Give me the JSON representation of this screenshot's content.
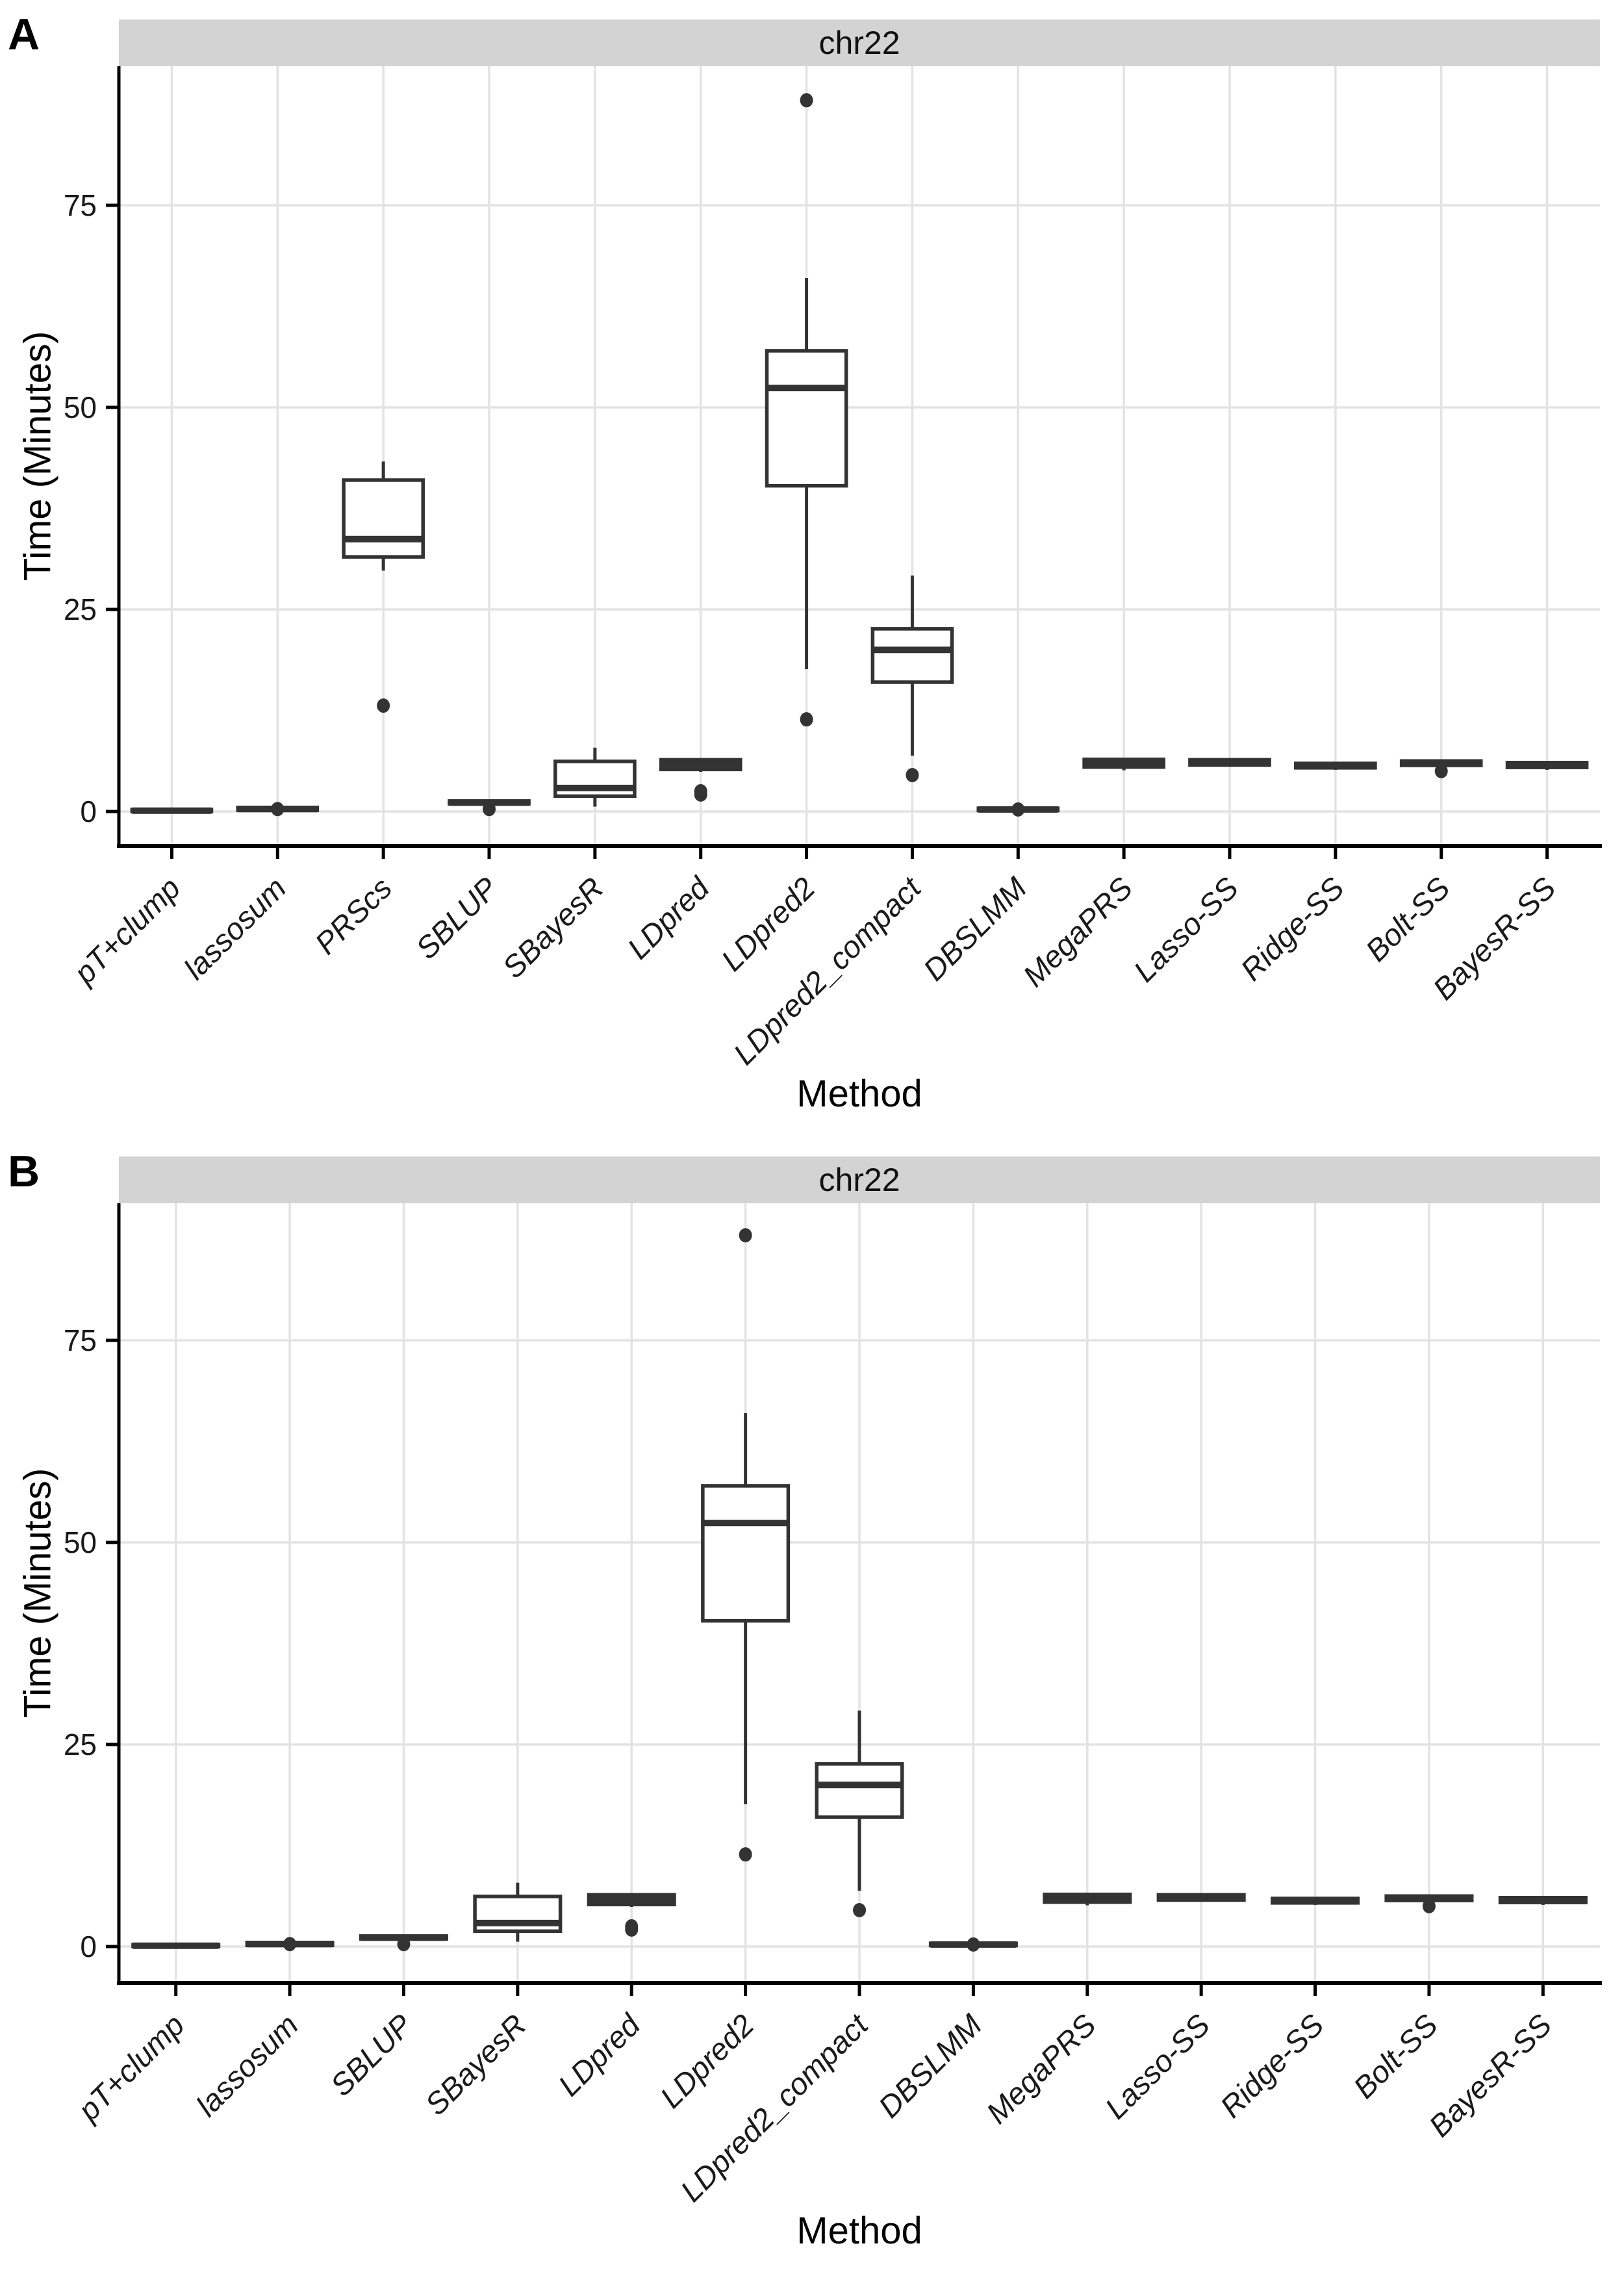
{
  "style_colors": {
    "box_stroke": "#333333",
    "median_stroke": "#333333",
    "outlier_fill": "#333333",
    "strip_fill": "#d3d3d3",
    "grid_line": "#e3e3e3",
    "axis_line": "#000000",
    "tick_text": "#1a1a1a",
    "panel_bg": "#ffffff"
  },
  "chart_data": [
    {
      "type": "boxplot",
      "panel_label": "A",
      "title": "chr22",
      "xlabel": "Method",
      "ylabel": "Time (Minutes)",
      "ylim": [
        -4.5,
        92
      ],
      "y_ticks": [
        0,
        25,
        50,
        75
      ],
      "grid": true,
      "categories": [
        "pT+clump",
        "lassosum",
        "PRScs",
        "SBLUP",
        "SBayesR",
        "LDpred",
        "LDpred2",
        "LDpred2_compact",
        "DBSLMM",
        "MegaPRS",
        "Lasso-SS",
        "Ridge-SS",
        "Bolt-SS",
        "BayesR-SS"
      ],
      "series": [
        {
          "name": "pT+clump",
          "low": 0,
          "q1": 0,
          "median": 0.1,
          "q3": 0.25,
          "high": 0.3,
          "outliers": []
        },
        {
          "name": "lassosum",
          "low": 0.05,
          "q1": 0.15,
          "median": 0.3,
          "q3": 0.5,
          "high": 0.6,
          "outliers": [
            0.3
          ]
        },
        {
          "name": "PRScs",
          "low": 29.8,
          "q1": 31.5,
          "median": 33.7,
          "q3": 41.0,
          "high": 43.3,
          "outliers": [
            13.1
          ]
        },
        {
          "name": "SBLUP",
          "low": 0.85,
          "q1": 0.95,
          "median": 1.1,
          "q3": 1.3,
          "high": 1.4,
          "outliers": [
            0.3
          ]
        },
        {
          "name": "SBayesR",
          "low": 0.6,
          "q1": 1.9,
          "median": 2.9,
          "q3": 6.2,
          "high": 7.9,
          "outliers": []
        },
        {
          "name": "LDpred",
          "low": 4.9,
          "q1": 5.2,
          "median": 5.8,
          "q3": 6.4,
          "high": 6.6,
          "outliers": [
            2.5,
            2.1
          ]
        },
        {
          "name": "LDpred2",
          "low": 17.6,
          "q1": 40.3,
          "median": 52.4,
          "q3": 57.0,
          "high": 66.0,
          "outliers": [
            88,
            11.4
          ]
        },
        {
          "name": "LDpred2_compact",
          "low": 6.9,
          "q1": 16.0,
          "median": 20.0,
          "q3": 22.6,
          "high": 29.2,
          "outliers": [
            4.5
          ]
        },
        {
          "name": "DBSLMM",
          "low": 0.05,
          "q1": 0.12,
          "median": 0.25,
          "q3": 0.4,
          "high": 0.45,
          "outliers": [
            0.25
          ]
        },
        {
          "name": "MegaPRS",
          "low": 5.1,
          "q1": 5.5,
          "median": 5.95,
          "q3": 6.45,
          "high": 6.55,
          "outliers": []
        },
        {
          "name": "Lasso-SS",
          "low": 5.55,
          "q1": 5.75,
          "median": 6.0,
          "q3": 6.4,
          "high": 6.5,
          "outliers": []
        },
        {
          "name": "Ridge-SS",
          "low": 5.15,
          "q1": 5.4,
          "median": 5.6,
          "q3": 5.95,
          "high": 6.05,
          "outliers": []
        },
        {
          "name": "Bolt-SS",
          "low": 5.5,
          "q1": 5.7,
          "median": 5.95,
          "q3": 6.25,
          "high": 6.35,
          "outliers": [
            5.0
          ]
        },
        {
          "name": "BayesR-SS",
          "low": 5.15,
          "q1": 5.45,
          "median": 5.7,
          "q3": 6.05,
          "high": 6.15,
          "outliers": []
        }
      ]
    },
    {
      "type": "boxplot",
      "panel_label": "B",
      "title": "chr22",
      "xlabel": "Method",
      "ylabel": "Time (Minutes)",
      "ylim": [
        -4.5,
        92
      ],
      "y_ticks": [
        0,
        25,
        50,
        75
      ],
      "grid": true,
      "categories": [
        "pT+clump",
        "lassosum",
        "SBLUP",
        "SBayesR",
        "LDpred",
        "LDpred2",
        "LDpred2_compact",
        "DBSLMM",
        "MegaPRS",
        "Lasso-SS",
        "Ridge-SS",
        "Bolt-SS",
        "BayesR-SS"
      ],
      "series": [
        {
          "name": "pT+clump",
          "low": 0,
          "q1": 0,
          "median": 0.1,
          "q3": 0.25,
          "high": 0.3,
          "outliers": []
        },
        {
          "name": "lassosum",
          "low": 0.05,
          "q1": 0.15,
          "median": 0.3,
          "q3": 0.5,
          "high": 0.6,
          "outliers": [
            0.3
          ]
        },
        {
          "name": "SBLUP",
          "low": 0.85,
          "q1": 0.95,
          "median": 1.1,
          "q3": 1.3,
          "high": 1.4,
          "outliers": [
            0.3
          ]
        },
        {
          "name": "SBayesR",
          "low": 0.6,
          "q1": 1.9,
          "median": 2.9,
          "q3": 6.2,
          "high": 7.9,
          "outliers": []
        },
        {
          "name": "LDpred",
          "low": 4.9,
          "q1": 5.2,
          "median": 5.8,
          "q3": 6.4,
          "high": 6.6,
          "outliers": [
            2.5,
            2.1
          ]
        },
        {
          "name": "LDpred2",
          "low": 17.6,
          "q1": 40.3,
          "median": 52.4,
          "q3": 57.0,
          "high": 66.0,
          "outliers": [
            88,
            11.4
          ]
        },
        {
          "name": "LDpred2_compact",
          "low": 6.9,
          "q1": 16.0,
          "median": 20.0,
          "q3": 22.6,
          "high": 29.2,
          "outliers": [
            4.5
          ]
        },
        {
          "name": "DBSLMM",
          "low": 0.05,
          "q1": 0.12,
          "median": 0.25,
          "q3": 0.4,
          "high": 0.45,
          "outliers": [
            0.25
          ]
        },
        {
          "name": "MegaPRS",
          "low": 5.1,
          "q1": 5.5,
          "median": 5.95,
          "q3": 6.45,
          "high": 6.55,
          "outliers": []
        },
        {
          "name": "Lasso-SS",
          "low": 5.55,
          "q1": 5.75,
          "median": 6.0,
          "q3": 6.4,
          "high": 6.5,
          "outliers": []
        },
        {
          "name": "Ridge-SS",
          "low": 5.15,
          "q1": 5.4,
          "median": 5.6,
          "q3": 5.95,
          "high": 6.05,
          "outliers": []
        },
        {
          "name": "Bolt-SS",
          "low": 5.5,
          "q1": 5.7,
          "median": 5.95,
          "q3": 6.25,
          "high": 6.35,
          "outliers": [
            5.0
          ]
        },
        {
          "name": "BayesR-SS",
          "low": 5.15,
          "q1": 5.45,
          "median": 5.7,
          "q3": 6.05,
          "high": 6.15,
          "outliers": []
        }
      ]
    }
  ]
}
